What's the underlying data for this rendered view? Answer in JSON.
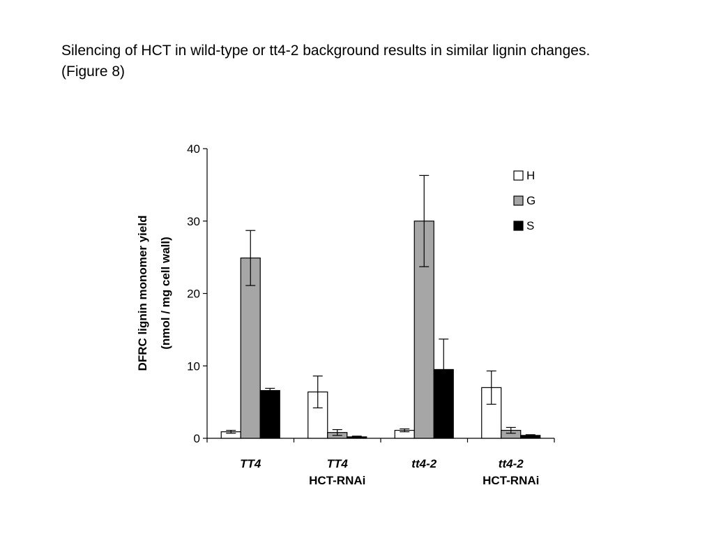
{
  "slide": {
    "title_line1": "Silencing of HCT in wild-type or tt4-2 background results in similar lignin changes.",
    "title_line2": "(Figure 8)"
  },
  "chart_data": {
    "type": "bar",
    "title": "",
    "ylabel_line1": "DFRC lignin monomer yield",
    "ylabel_line2": "(nmol / mg cell wall)",
    "xlabel": "",
    "ylim": [
      0,
      40
    ],
    "yticks": [
      0,
      10,
      20,
      30,
      40
    ],
    "categories": [
      {
        "line1": "TT4",
        "line2": "",
        "italic": true
      },
      {
        "line1": "TT4",
        "line2": "HCT-RNAi",
        "italic": true
      },
      {
        "line1": "tt4-2",
        "line2": "",
        "italic": true
      },
      {
        "line1": "tt4-2",
        "line2": "HCT-RNAi",
        "italic": true
      }
    ],
    "series": [
      {
        "name": "H",
        "color": "#ffffff",
        "values": [
          0.9,
          6.4,
          1.1,
          7.0
        ],
        "errors": [
          0.2,
          2.2,
          0.2,
          2.3
        ]
      },
      {
        "name": "G",
        "color": "#a6a6a6",
        "values": [
          24.9,
          0.8,
          30.0,
          1.1
        ],
        "errors": [
          3.8,
          0.4,
          6.3,
          0.4
        ]
      },
      {
        "name": "S",
        "color": "#000000",
        "values": [
          6.6,
          0.2,
          9.5,
          0.4
        ],
        "errors": [
          0.3,
          0.1,
          4.2,
          0.1
        ]
      }
    ],
    "legend_position": "top-right",
    "grid": false
  }
}
